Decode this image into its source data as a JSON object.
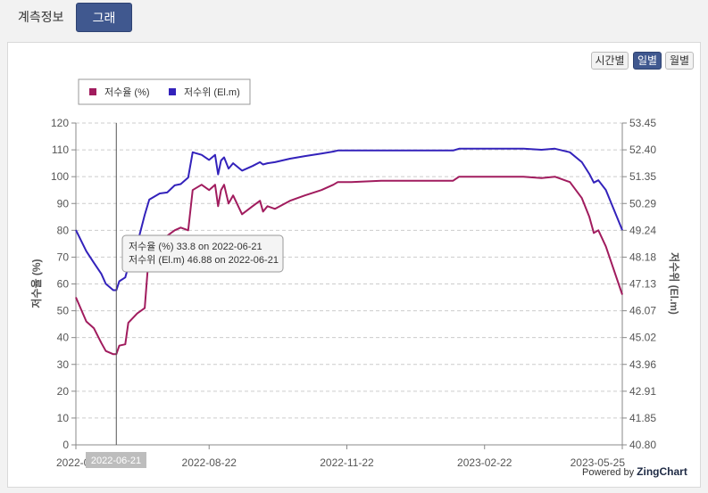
{
  "tabs": [
    {
      "label": "계측정보",
      "active": false
    },
    {
      "label": "그래프",
      "active": true
    }
  ],
  "period_buttons": [
    {
      "label": "시간별",
      "active": false
    },
    {
      "label": "일별",
      "active": true
    },
    {
      "label": "월별",
      "active": false
    }
  ],
  "tooltip": {
    "line1": "저수율 (%) 33.8 on 2022-06-21",
    "line2": "저수위 (El.m) 46.88 on 2022-06-21"
  },
  "crosshair_label": "2022-06-21",
  "credit": {
    "prefix": "Powered by",
    "brand": "ZingChart"
  },
  "chart_data": {
    "type": "line",
    "legend": {
      "placement": "top-left"
    },
    "ylabel": "저수율 (%)",
    "y2label": "저수위 (El.m)",
    "ylim": [
      0,
      120
    ],
    "y2lim": [
      40.8,
      53.45
    ],
    "yticks": [
      "0",
      "10",
      "20",
      "30",
      "40",
      "50",
      "60",
      "70",
      "80",
      "90",
      "100",
      "110",
      "120"
    ],
    "y2ticks": [
      "40.80",
      "41.85",
      "42.91",
      "43.96",
      "45.02",
      "46.07",
      "47.13",
      "48.18",
      "49.24",
      "50.29",
      "51.35",
      "52.40",
      "53.45"
    ],
    "xlim": [
      "2022-05-25",
      "2023-05-25"
    ],
    "xticks": [
      "2022-05-25",
      "2022-08-22",
      "2022-11-22",
      "2023-02-22",
      "2023-05-25"
    ],
    "xtick_labels": [
      "2022-05",
      "2022-08-22",
      "2022-11-22",
      "2023-02-22",
      "2023-05-25"
    ],
    "grid": true,
    "colors": {
      "rate": "#a11c5e",
      "level": "#3322bb",
      "grid": "#cccccc",
      "crosshair": "#555555"
    },
    "series": [
      {
        "name": "저수율 (%)",
        "axis": "left",
        "points": [
          [
            "2022-05-25",
            55
          ],
          [
            "2022-06-01",
            46
          ],
          [
            "2022-06-06",
            43.5
          ],
          [
            "2022-06-11",
            38
          ],
          [
            "2022-06-14",
            35
          ],
          [
            "2022-06-19",
            33.8
          ],
          [
            "2022-06-21",
            33.8
          ],
          [
            "2022-06-23",
            37
          ],
          [
            "2022-06-27",
            37.5
          ],
          [
            "2022-06-29",
            45.5
          ],
          [
            "2022-07-05",
            49
          ],
          [
            "2022-07-10",
            51
          ],
          [
            "2022-07-13",
            73
          ],
          [
            "2022-07-20",
            76
          ],
          [
            "2022-07-25",
            78
          ],
          [
            "2022-07-30",
            80
          ],
          [
            "2022-08-03",
            81
          ],
          [
            "2022-08-08",
            80
          ],
          [
            "2022-08-11",
            95
          ],
          [
            "2022-08-17",
            97
          ],
          [
            "2022-08-22",
            95
          ],
          [
            "2022-08-26",
            97
          ],
          [
            "2022-08-28",
            89
          ],
          [
            "2022-08-30",
            95
          ],
          [
            "2022-09-01",
            97
          ],
          [
            "2022-09-04",
            90
          ],
          [
            "2022-09-07",
            93
          ],
          [
            "2022-09-13",
            86
          ],
          [
            "2022-09-20",
            89
          ],
          [
            "2022-09-25",
            91
          ],
          [
            "2022-09-27",
            87
          ],
          [
            "2022-09-30",
            89
          ],
          [
            "2022-10-05",
            88
          ],
          [
            "2022-10-15",
            91
          ],
          [
            "2022-10-25",
            93
          ],
          [
            "2022-11-05",
            95
          ],
          [
            "2022-11-13",
            97
          ],
          [
            "2022-11-16",
            98
          ],
          [
            "2022-11-25",
            98
          ],
          [
            "2022-12-15",
            98.5
          ],
          [
            "2023-01-10",
            98.5
          ],
          [
            "2023-02-01",
            98.5
          ],
          [
            "2023-02-05",
            100
          ],
          [
            "2023-02-20",
            100
          ],
          [
            "2023-03-20",
            100
          ],
          [
            "2023-04-01",
            99.5
          ],
          [
            "2023-04-10",
            100
          ],
          [
            "2023-04-20",
            98
          ],
          [
            "2023-04-28",
            92
          ],
          [
            "2023-05-03",
            85
          ],
          [
            "2023-05-06",
            79
          ],
          [
            "2023-05-09",
            80
          ],
          [
            "2023-05-14",
            74
          ],
          [
            "2023-05-25",
            56
          ]
        ]
      },
      {
        "name": "저수위 (El.m)",
        "axis": "right",
        "points": [
          [
            "2022-05-25",
            49.24
          ],
          [
            "2022-06-01",
            48.41
          ],
          [
            "2022-06-06",
            47.96
          ],
          [
            "2022-06-11",
            47.52
          ],
          [
            "2022-06-14",
            47.13
          ],
          [
            "2022-06-19",
            46.88
          ],
          [
            "2022-06-21",
            46.88
          ],
          [
            "2022-06-23",
            47.23
          ],
          [
            "2022-06-27",
            47.38
          ],
          [
            "2022-06-29",
            47.81
          ],
          [
            "2022-07-05",
            48.7
          ],
          [
            "2022-07-10",
            49.84
          ],
          [
            "2022-07-13",
            50.44
          ],
          [
            "2022-07-20",
            50.68
          ],
          [
            "2022-07-25",
            50.72
          ],
          [
            "2022-07-30",
            51.0
          ],
          [
            "2022-08-03",
            51.05
          ],
          [
            "2022-08-08",
            51.31
          ],
          [
            "2022-08-11",
            52.3
          ],
          [
            "2022-08-17",
            52.2
          ],
          [
            "2022-08-22",
            52.0
          ],
          [
            "2022-08-26",
            52.2
          ],
          [
            "2022-08-28",
            51.43
          ],
          [
            "2022-08-30",
            51.98
          ],
          [
            "2022-09-01",
            52.1
          ],
          [
            "2022-09-04",
            51.66
          ],
          [
            "2022-09-07",
            51.87
          ],
          [
            "2022-09-13",
            51.58
          ],
          [
            "2022-09-20",
            51.76
          ],
          [
            "2022-09-25",
            51.91
          ],
          [
            "2022-09-27",
            51.82
          ],
          [
            "2022-09-30",
            51.87
          ],
          [
            "2022-10-05",
            51.91
          ],
          [
            "2022-10-15",
            52.05
          ],
          [
            "2022-10-25",
            52.15
          ],
          [
            "2022-11-05",
            52.25
          ],
          [
            "2022-11-13",
            52.33
          ],
          [
            "2022-11-16",
            52.37
          ],
          [
            "2022-11-25",
            52.37
          ],
          [
            "2022-12-15",
            52.37
          ],
          [
            "2023-01-10",
            52.37
          ],
          [
            "2023-02-01",
            52.37
          ],
          [
            "2023-02-05",
            52.44
          ],
          [
            "2023-02-20",
            52.44
          ],
          [
            "2023-03-20",
            52.44
          ],
          [
            "2023-04-01",
            52.4
          ],
          [
            "2023-04-10",
            52.44
          ],
          [
            "2023-04-20",
            52.3
          ],
          [
            "2023-04-28",
            51.91
          ],
          [
            "2023-05-03",
            51.45
          ],
          [
            "2023-05-06",
            51.11
          ],
          [
            "2023-05-09",
            51.2
          ],
          [
            "2023-05-14",
            50.82
          ],
          [
            "2023-05-25",
            49.24
          ]
        ]
      }
    ]
  }
}
